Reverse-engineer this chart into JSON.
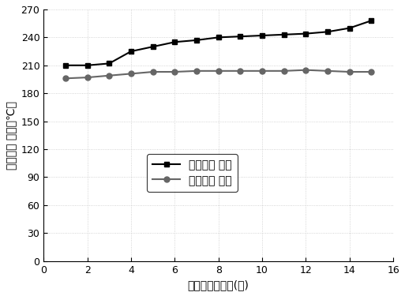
{
  "x": [
    1,
    2,
    3,
    4,
    5,
    6,
    7,
    8,
    9,
    10,
    11,
    12,
    13,
    14,
    15
  ],
  "y_no_exchanger": [
    210,
    210,
    212,
    225,
    230,
    235,
    237,
    240,
    241,
    242,
    243,
    244,
    246,
    250,
    258
  ],
  "y_with_exchanger": [
    196,
    197,
    199,
    201,
    203,
    203,
    204,
    204,
    204,
    204,
    204,
    205,
    204,
    203,
    203
  ],
  "line1_color": "#000000",
  "line2_color": "#666666",
  "marker1": "s",
  "marker2": "o",
  "legend1": "无换热器 运行",
  "legend2": "有换热器 运行",
  "xlabel": "清灰后运行天数(天)",
  "ylabel": "进除尘器 烟温（℃）",
  "xlim": [
    0,
    16
  ],
  "ylim": [
    0,
    270
  ],
  "xticks": [
    0,
    2,
    4,
    6,
    8,
    10,
    12,
    14,
    16
  ],
  "yticks": [
    0,
    30,
    60,
    90,
    120,
    150,
    180,
    210,
    240,
    270
  ],
  "background_color": "#ffffff",
  "grid_color": "#bbbbbb"
}
